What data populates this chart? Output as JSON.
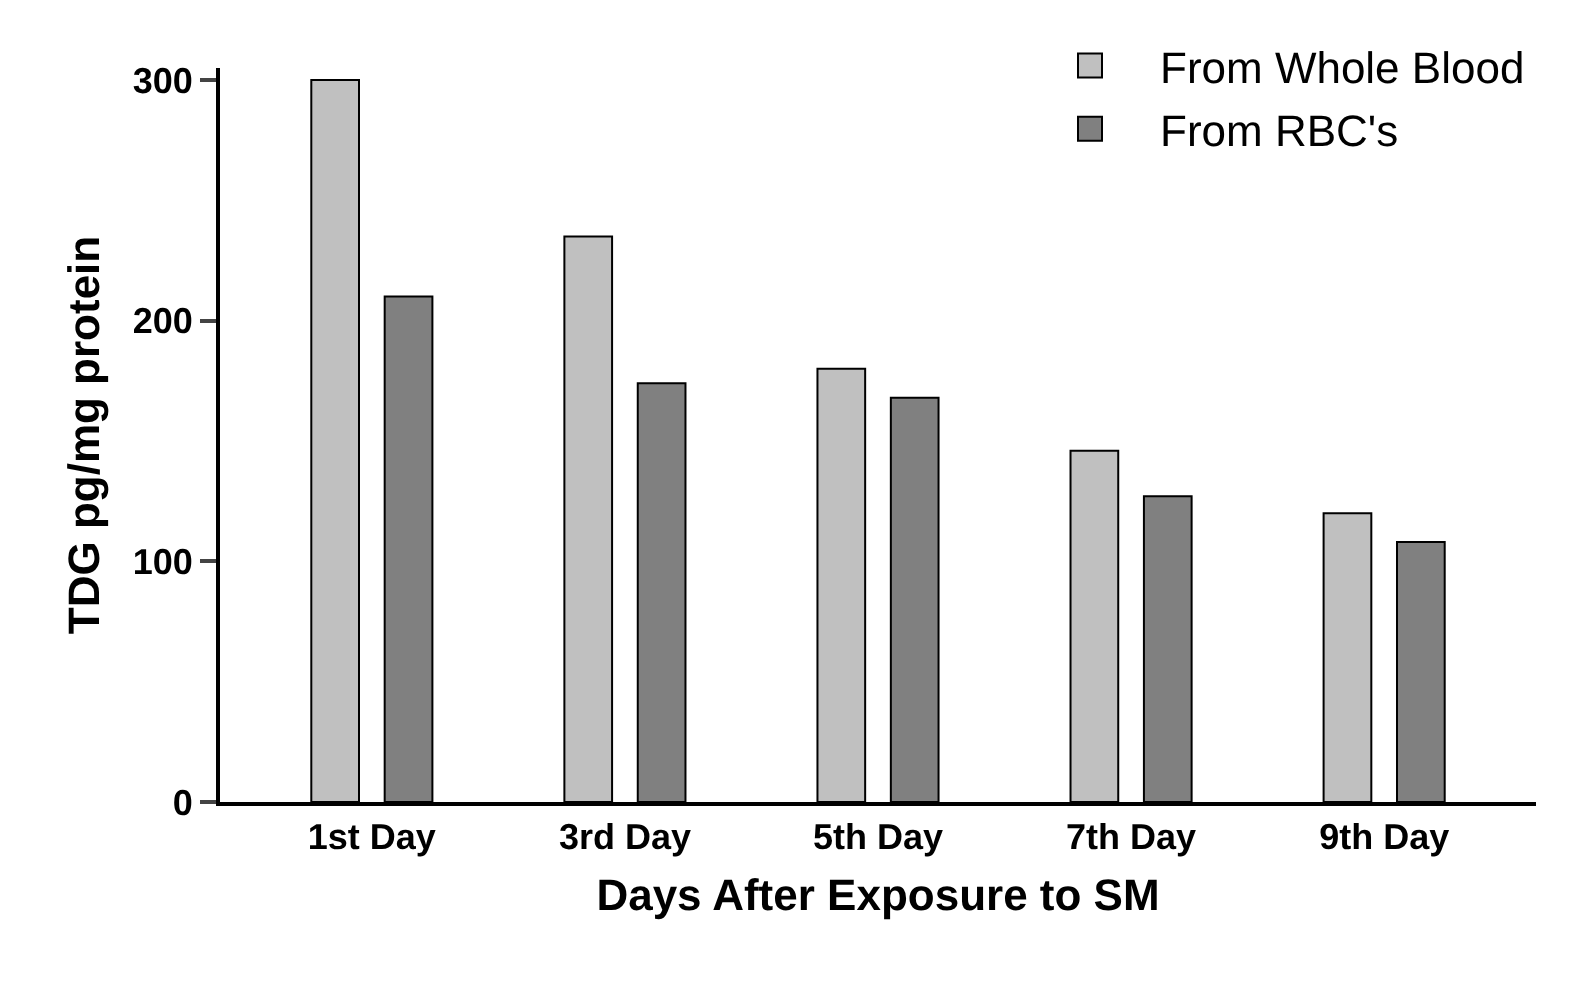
{
  "chart_data": {
    "type": "bar",
    "categories": [
      "1st Day",
      "3rd Day",
      "5th Day",
      "7th Day",
      "9th Day"
    ],
    "xlabel": "Days After Exposure to SM",
    "ylabel": "TDG pg/mg protein",
    "series": [
      {
        "name": "From Whole Blood",
        "color": "#c0c0c0",
        "values": [
          300,
          235,
          180,
          146,
          120
        ]
      },
      {
        "name": "From RBC's",
        "color": "#808080",
        "values": [
          210,
          174,
          168,
          127,
          108
        ]
      }
    ],
    "ylim": [
      0,
      305
    ],
    "yticks": [
      0,
      100,
      200,
      300
    ],
    "grid": false,
    "legend": "top right"
  }
}
